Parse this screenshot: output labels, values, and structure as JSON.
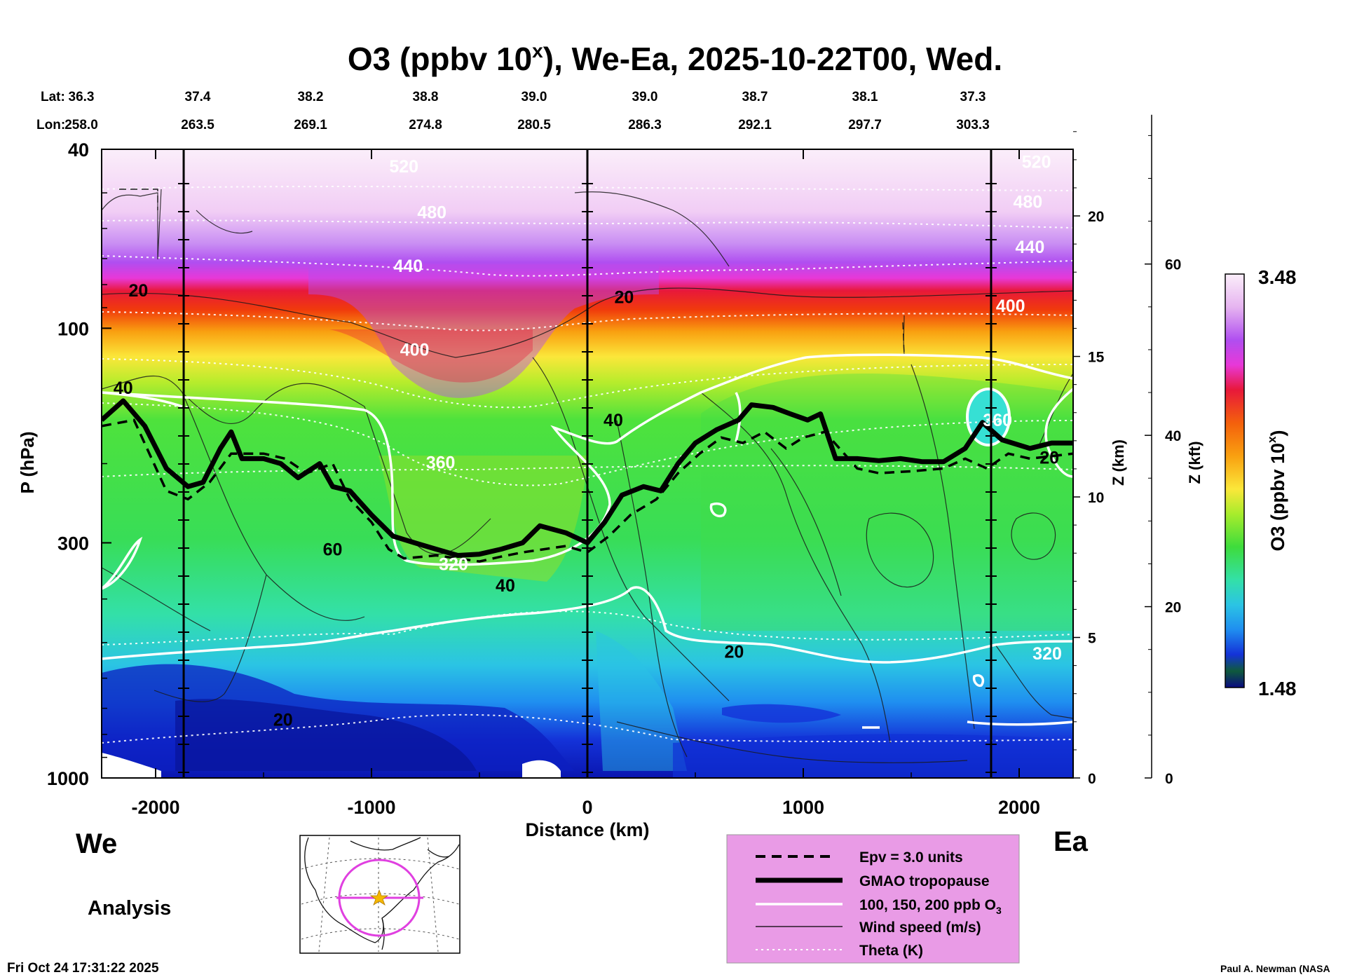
{
  "chart_data": {
    "type": "heatmap",
    "title": "O3 (ppbv 10",
    "title_sup": "x",
    "title_suffix": "), We-Ea, 2025-10-22T00, Wed.",
    "xlabel": "Distance (km)",
    "ylabel": "P (hPa)",
    "y2label": "Z (km)",
    "y3label": "Z (kft)",
    "colorbar_label": "O3 (ppbv 10",
    "colorbar_label_sup": "x",
    "colorbar_label_suffix": ")",
    "colorbar_max": "3.48",
    "colorbar_min": "1.48",
    "xlim": [
      -2250,
      2250
    ],
    "x_ticks": [
      -2000,
      -1000,
      0,
      1000,
      2000
    ],
    "x_tick_labels": [
      "-2000",
      "-1000",
      "0",
      "1000",
      "2000"
    ],
    "ylim_hpa": [
      1000,
      40
    ],
    "y_ticks": [
      40,
      100,
      300,
      1000
    ],
    "y_tick_labels": [
      "40",
      "100",
      "300",
      "1000"
    ],
    "z_km_ticks": [
      0,
      5,
      10,
      15,
      20
    ],
    "z_km_labels": [
      "0",
      "5",
      "10",
      "15",
      "20"
    ],
    "z_kft_ticks": [
      0,
      20,
      40,
      60
    ],
    "z_kft_labels": [
      "0",
      "20",
      "40",
      "60"
    ],
    "lat_label": "Lat:",
    "lon_label": "Lon:",
    "lat_values": [
      "36.3",
      "37.4",
      "38.2",
      "38.8",
      "39.0",
      "39.0",
      "38.7",
      "38.1",
      "37.3"
    ],
    "lon_values": [
      "258.0",
      "263.5",
      "269.1",
      "274.8",
      "280.5",
      "286.3",
      "292.1",
      "297.7",
      "303.3"
    ],
    "marker_lines_km": [
      -1870,
      0,
      1870
    ],
    "tropopause_hpa": [
      [
        -2250,
        160
      ],
      [
        -2150,
        145
      ],
      [
        -2050,
        165
      ],
      [
        -1950,
        205
      ],
      [
        -1850,
        225
      ],
      [
        -1780,
        220
      ],
      [
        -1700,
        185
      ],
      [
        -1650,
        170
      ],
      [
        -1600,
        195
      ],
      [
        -1500,
        195
      ],
      [
        -1420,
        200
      ],
      [
        -1340,
        215
      ],
      [
        -1240,
        200
      ],
      [
        -1180,
        225
      ],
      [
        -1100,
        230
      ],
      [
        -1000,
        260
      ],
      [
        -900,
        290
      ],
      [
        -800,
        300
      ],
      [
        -700,
        310
      ],
      [
        -600,
        320
      ],
      [
        -500,
        318
      ],
      [
        -400,
        310
      ],
      [
        -300,
        300
      ],
      [
        -220,
        275
      ],
      [
        -100,
        285
      ],
      [
        0,
        300
      ],
      [
        80,
        270
      ],
      [
        160,
        235
      ],
      [
        260,
        225
      ],
      [
        340,
        230
      ],
      [
        420,
        200
      ],
      [
        500,
        180
      ],
      [
        600,
        168
      ],
      [
        700,
        160
      ],
      [
        760,
        148
      ],
      [
        860,
        150
      ],
      [
        940,
        155
      ],
      [
        1020,
        160
      ],
      [
        1080,
        155
      ],
      [
        1150,
        195
      ],
      [
        1250,
        195
      ],
      [
        1350,
        197
      ],
      [
        1450,
        195
      ],
      [
        1550,
        198
      ],
      [
        1650,
        198
      ],
      [
        1750,
        185
      ],
      [
        1830,
        162
      ],
      [
        1920,
        177
      ],
      [
        2050,
        185
      ],
      [
        2150,
        180
      ],
      [
        2250,
        180
      ]
    ],
    "epv_3_hpa": [
      [
        -2250,
        165
      ],
      [
        -2100,
        160
      ],
      [
        -1950,
        230
      ],
      [
        -1850,
        240
      ],
      [
        -1750,
        220
      ],
      [
        -1650,
        190
      ],
      [
        -1500,
        190
      ],
      [
        -1400,
        195
      ],
      [
        -1300,
        210
      ],
      [
        -1180,
        200
      ],
      [
        -1100,
        240
      ],
      [
        -1000,
        270
      ],
      [
        -920,
        310
      ],
      [
        -850,
        325
      ],
      [
        -700,
        320
      ],
      [
        -600,
        325
      ],
      [
        -500,
        330
      ],
      [
        -400,
        322
      ],
      [
        -300,
        315
      ],
      [
        -200,
        310
      ],
      [
        -100,
        305
      ],
      [
        0,
        315
      ],
      [
        100,
        290
      ],
      [
        200,
        260
      ],
      [
        320,
        240
      ],
      [
        420,
        210
      ],
      [
        520,
        190
      ],
      [
        620,
        175
      ],
      [
        720,
        180
      ],
      [
        820,
        170
      ],
      [
        920,
        185
      ],
      [
        1000,
        175
      ],
      [
        1100,
        170
      ],
      [
        1250,
        205
      ],
      [
        1350,
        210
      ],
      [
        1500,
        208
      ],
      [
        1650,
        205
      ],
      [
        1750,
        195
      ],
      [
        1850,
        205
      ],
      [
        1950,
        190
      ],
      [
        2050,
        195
      ],
      [
        2250,
        190
      ]
    ],
    "contour_labels": [
      {
        "text": "520",
        "x": -850,
        "p": 45,
        "color": "white"
      },
      {
        "text": "480",
        "x": -720,
        "p": 57,
        "color": "white"
      },
      {
        "text": "440",
        "x": -830,
        "p": 75,
        "color": "white"
      },
      {
        "text": "400",
        "x": -800,
        "p": 115,
        "color": "white"
      },
      {
        "text": "360",
        "x": -680,
        "p": 205,
        "color": "white"
      },
      {
        "text": "320",
        "x": -620,
        "p": 345,
        "color": "white"
      },
      {
        "text": "520",
        "x": 2080,
        "p": 44,
        "color": "white"
      },
      {
        "text": "480",
        "x": 2040,
        "p": 54,
        "color": "white"
      },
      {
        "text": "440",
        "x": 2050,
        "p": 68,
        "color": "white"
      },
      {
        "text": "400",
        "x": 1960,
        "p": 92,
        "color": "white"
      },
      {
        "text": "360",
        "x": 1900,
        "p": 165,
        "color": "white"
      },
      {
        "text": "320",
        "x": 2130,
        "p": 545,
        "color": "white"
      },
      {
        "text": "20",
        "x": -2080,
        "p": 85,
        "color": "black"
      },
      {
        "text": "20",
        "x": 170,
        "p": 88,
        "color": "black"
      },
      {
        "text": "40",
        "x": -2150,
        "p": 140,
        "color": "black"
      },
      {
        "text": "40",
        "x": 120,
        "p": 165,
        "color": "black"
      },
      {
        "text": "60",
        "x": -1180,
        "p": 320,
        "color": "black"
      },
      {
        "text": "40",
        "x": -380,
        "p": 385,
        "color": "black"
      },
      {
        "text": "20",
        "x": 680,
        "p": 540,
        "color": "black"
      },
      {
        "text": "20",
        "x": -1410,
        "p": 765,
        "color": "black"
      },
      {
        "text": "20",
        "x": 2140,
        "p": 200,
        "color": "black"
      }
    ]
  },
  "direction_west": "We",
  "direction_east": "Ea",
  "analysis_label": "Analysis",
  "timestamp": "Fri Oct 24 17:31:22 2025",
  "author": "Paul A. Newman (NASA",
  "legend": [
    {
      "label": "Epv = 3.0 units",
      "style": "dashed"
    },
    {
      "label": "GMAO tropopause",
      "style": "thick"
    },
    {
      "label": "100, 150, 200 ppb O",
      "sub": "3",
      "style": "white"
    },
    {
      "label": "Wind speed (m/s)",
      "style": "thin"
    },
    {
      "label": "Theta (K)",
      "style": "dotted"
    }
  ],
  "colors": {
    "legend_bg": "#e99be6",
    "map_track": "#e040e0",
    "map_star": "#f5b800",
    "tropopause": "#000000"
  }
}
